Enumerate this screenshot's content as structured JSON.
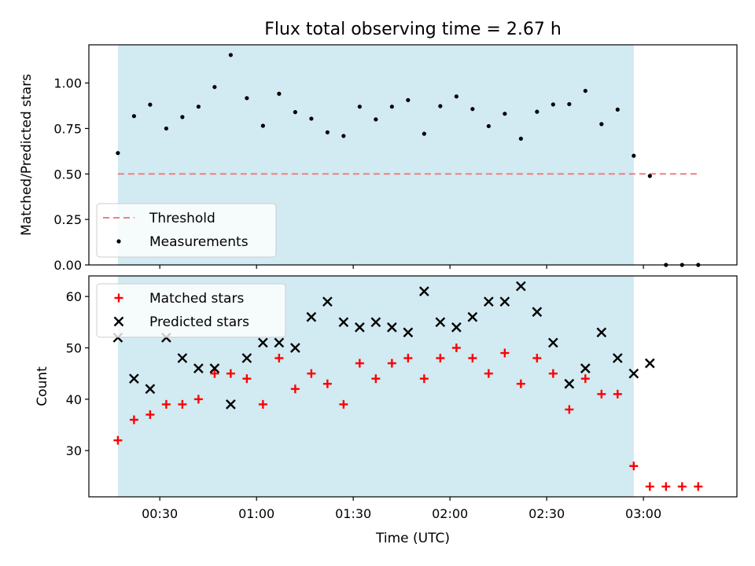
{
  "chart_data": [
    {
      "type": "scatter",
      "title": "Flux total observing time = 2.67 h",
      "xlabel": "",
      "ylabel": "Matched/Predicted stars",
      "xlim": [
        "00:08",
        "03:29"
      ],
      "ylim": [
        0,
        1.21
      ],
      "yticks": [
        0.0,
        0.25,
        0.5,
        0.75,
        1.0
      ],
      "ytick_labels": [
        "0.00",
        "0.25",
        "0.50",
        "0.75",
        "1.00"
      ],
      "shaded_region": {
        "x": [
          "00:17",
          "02:57"
        ],
        "color": "#add8e6"
      },
      "grid": false,
      "legend_location": "lower-left",
      "series": [
        {
          "name": "Threshold",
          "kind": "dashed-line",
          "color": "#f08080",
          "x": [
            "00:17",
            "03:17"
          ],
          "y": [
            0.5,
            0.5
          ]
        },
        {
          "name": "Measurements",
          "kind": "dot",
          "color": "#000000",
          "x": [
            "00:17",
            "00:22",
            "00:27",
            "00:32",
            "00:37",
            "00:42",
            "00:47",
            "00:52",
            "00:57",
            "01:02",
            "01:07",
            "01:12",
            "01:17",
            "01:22",
            "01:27",
            "01:32",
            "01:37",
            "01:42",
            "01:47",
            "01:52",
            "01:57",
            "02:02",
            "02:07",
            "02:12",
            "02:17",
            "02:22",
            "02:27",
            "02:32",
            "02:37",
            "02:42",
            "02:47",
            "02:52",
            "02:57",
            "03:02",
            "03:07",
            "03:12",
            "03:17"
          ],
          "y": [
            0.615,
            0.818,
            0.881,
            0.75,
            0.813,
            0.87,
            0.978,
            1.154,
            0.917,
            0.765,
            0.941,
            0.84,
            0.804,
            0.729,
            0.709,
            0.87,
            0.8,
            0.87,
            0.906,
            0.721,
            0.873,
            0.926,
            0.857,
            0.763,
            0.831,
            0.694,
            0.842,
            0.882,
            0.884,
            0.957,
            0.774,
            0.854,
            0.6,
            0.489,
            0,
            0,
            0
          ]
        }
      ]
    },
    {
      "type": "scatter",
      "title": "",
      "xlabel": "Time (UTC)",
      "ylabel": "Count",
      "xlim": [
        "00:08",
        "03:29"
      ],
      "ylim": [
        21,
        64
      ],
      "xticks": [
        "00:30",
        "01:00",
        "01:30",
        "02:00",
        "02:30",
        "03:00"
      ],
      "yticks": [
        30,
        40,
        50,
        60
      ],
      "ytick_labels": [
        "30",
        "40",
        "50",
        "60"
      ],
      "shaded_region": {
        "x": [
          "00:17",
          "02:57"
        ],
        "color": "#add8e6"
      },
      "grid": false,
      "legend_location": "upper-left",
      "series": [
        {
          "name": "Matched stars",
          "kind": "plus",
          "color": "#ff0000",
          "x": [
            "00:17",
            "00:22",
            "00:27",
            "00:32",
            "00:37",
            "00:42",
            "00:47",
            "00:52",
            "00:57",
            "01:02",
            "01:07",
            "01:12",
            "01:17",
            "01:22",
            "01:27",
            "01:32",
            "01:37",
            "01:42",
            "01:47",
            "01:52",
            "01:57",
            "02:02",
            "02:07",
            "02:12",
            "02:17",
            "02:22",
            "02:27",
            "02:32",
            "02:37",
            "02:42",
            "02:47",
            "02:52",
            "02:57",
            "03:02",
            "03:07",
            "03:12",
            "03:17"
          ],
          "y": [
            32,
            36,
            37,
            39,
            39,
            40,
            45,
            45,
            44,
            39,
            48,
            42,
            45,
            43,
            39,
            47,
            44,
            47,
            48,
            44,
            48,
            50,
            48,
            45,
            49,
            43,
            48,
            45,
            38,
            44,
            41,
            41,
            27,
            23,
            23,
            23,
            23
          ]
        },
        {
          "name": "Predicted stars",
          "kind": "cross",
          "color": "#000000",
          "x": [
            "00:17",
            "00:22",
            "00:27",
            "00:32",
            "00:37",
            "00:42",
            "00:47",
            "00:52",
            "00:57",
            "01:02",
            "01:07",
            "01:12",
            "01:17",
            "01:22",
            "01:27",
            "01:32",
            "01:37",
            "01:42",
            "01:47",
            "01:52",
            "01:57",
            "02:02",
            "02:07",
            "02:12",
            "02:17",
            "02:22",
            "02:27",
            "02:32",
            "02:37",
            "02:42",
            "02:47",
            "02:52",
            "02:57",
            "03:02"
          ],
          "y": [
            52,
            44,
            42,
            52,
            48,
            46,
            46,
            39,
            48,
            51,
            51,
            50,
            56,
            59,
            55,
            54,
            55,
            54,
            53,
            61,
            55,
            54,
            56,
            59,
            59,
            62,
            57,
            51,
            43,
            46,
            53,
            48,
            45,
            47
          ]
        }
      ]
    }
  ]
}
